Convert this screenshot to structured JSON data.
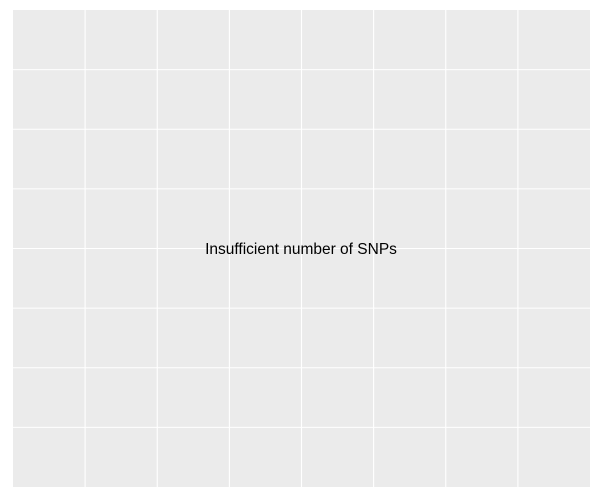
{
  "chart_data": {
    "type": "scatter",
    "title": "",
    "xlabel": "",
    "ylabel": "",
    "series": [],
    "grid": true,
    "axis_ticks_shown": false,
    "panel_background": "#ebebeb",
    "grid_color": "#ffffff",
    "annotations": [
      {
        "text": "Insufficient number of SNPs"
      }
    ]
  }
}
